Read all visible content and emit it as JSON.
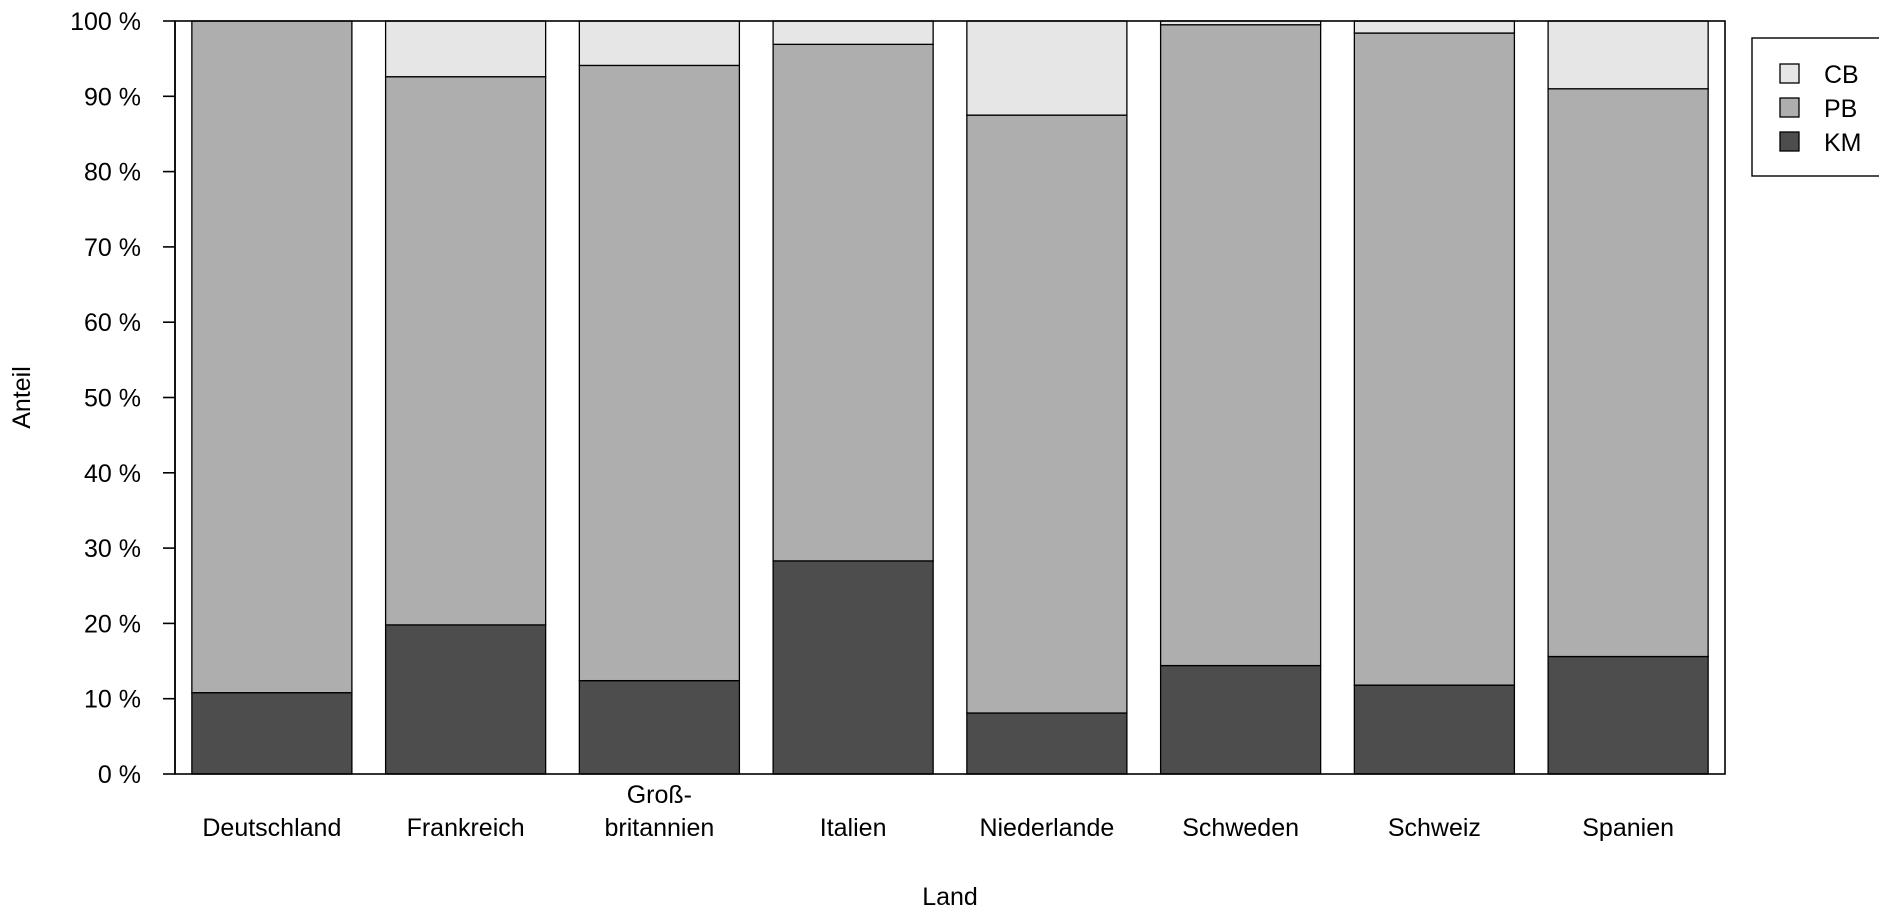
{
  "chart_data": {
    "type": "bar",
    "stacked": true,
    "xlabel": "Land",
    "ylabel": "Anteil",
    "ylim": [
      0,
      100
    ],
    "yticks": [
      "0 %",
      "10 %",
      "20 %",
      "30 %",
      "40 %",
      "50 %",
      "60 %",
      "70 %",
      "80 %",
      "90 %",
      "100 %"
    ],
    "categories": [
      [
        "Deutschland"
      ],
      [
        "Frankreich"
      ],
      [
        "Groß-",
        "britannien"
      ],
      [
        "Italien"
      ],
      [
        "Niederlande"
      ],
      [
        "Schweden"
      ],
      [
        "Schweiz"
      ],
      [
        "Spanien"
      ]
    ],
    "series": [
      {
        "name": "KM",
        "color": "#4d4d4d",
        "values": [
          10.8,
          19.8,
          12.4,
          28.3,
          8.1,
          14.4,
          11.8,
          15.6
        ]
      },
      {
        "name": "PB",
        "color": "#aeaeae",
        "values": [
          89.2,
          72.8,
          81.7,
          68.6,
          79.4,
          85.1,
          86.6,
          75.4
        ]
      },
      {
        "name": "CB",
        "color": "#e6e6e6",
        "values": [
          0.0,
          7.4,
          5.9,
          3.1,
          12.5,
          0.5,
          1.6,
          9.0
        ]
      }
    ],
    "legend_order": [
      "CB",
      "PB",
      "KM"
    ],
    "legend_position": "top-right",
    "grid": false
  }
}
